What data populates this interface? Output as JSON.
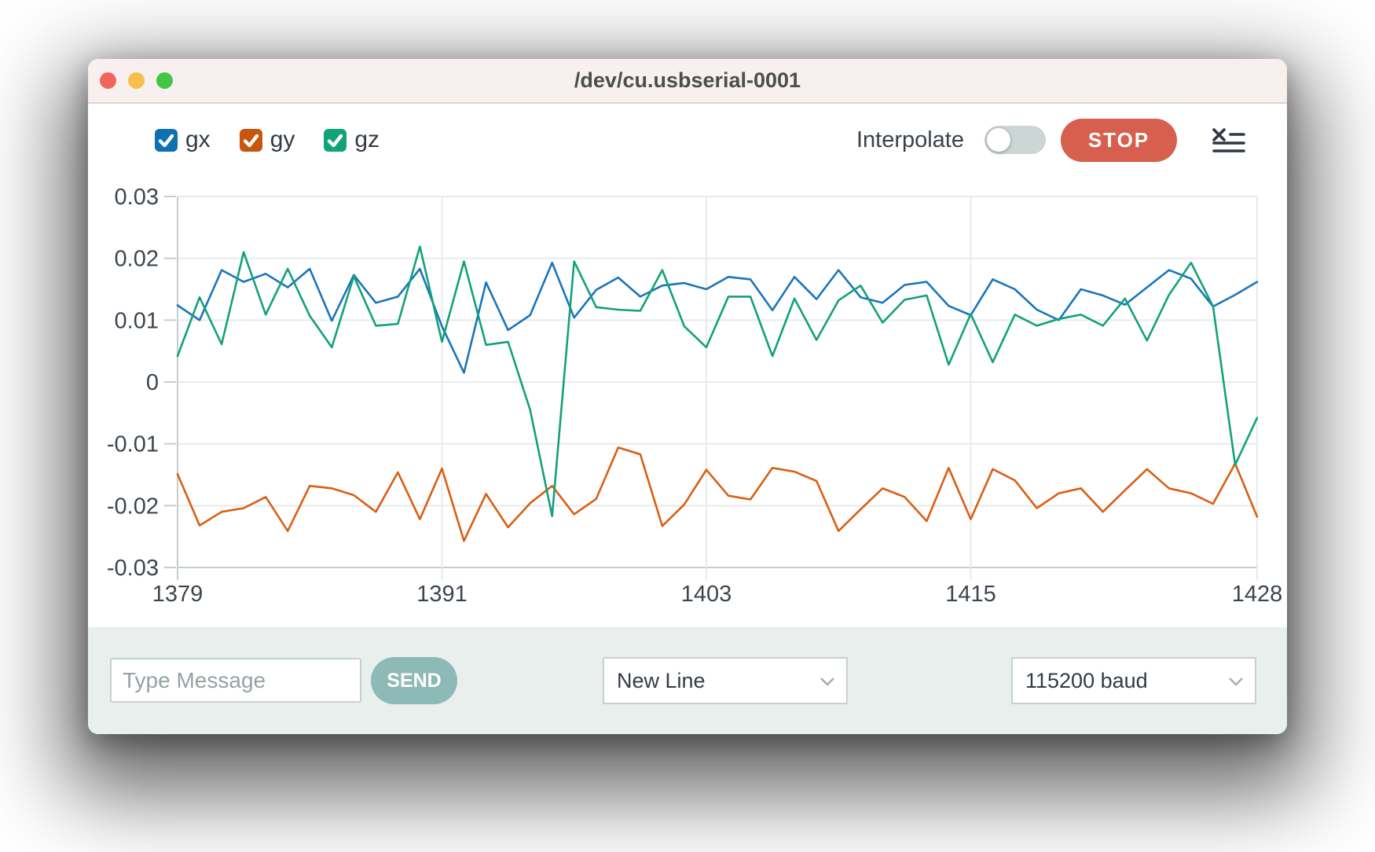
{
  "window": {
    "title": "/dev/cu.usbserial-0001",
    "traffic_lights": [
      "#f2655c",
      "#f6bf4e",
      "#43c645"
    ]
  },
  "legend": [
    {
      "label": "gx",
      "checked": true,
      "color": "#0d72b2"
    },
    {
      "label": "gy",
      "checked": true,
      "color": "#c8560e"
    },
    {
      "label": "gz",
      "checked": true,
      "color": "#12a279"
    }
  ],
  "controls": {
    "interpolate_label": "Interpolate",
    "interpolate_on": false,
    "stop_label": "STOP",
    "console_icon": "clear-console-icon"
  },
  "colors": {
    "titlebar_bg": "#f7f0ee",
    "stop_button": "#d6604d",
    "send_button": "#8db9b6",
    "footer_bg": "#e8efec",
    "toggle_track": "#ccd6d4",
    "grid_line": "#e7ebea",
    "axis_line": "#c6cdcd",
    "axis_text": "#3c454e"
  },
  "chart_data": {
    "type": "line",
    "title": "",
    "xlabel": "",
    "ylabel": "",
    "xlim": [
      1379,
      1428
    ],
    "ylim": [
      -0.03,
      0.03
    ],
    "grid": true,
    "legend_position": "top-left",
    "xticks": [
      1379,
      1391,
      1403,
      1415,
      1428
    ],
    "ytick_labels": [
      "0.03",
      "0.02",
      "0.01",
      "0",
      "-0.01",
      "-0.02",
      "-0.03"
    ],
    "x": [
      1379,
      1380,
      1381,
      1382,
      1383,
      1384,
      1385,
      1386,
      1387,
      1388,
      1389,
      1390,
      1391,
      1392,
      1393,
      1394,
      1395,
      1396,
      1397,
      1398,
      1399,
      1400,
      1401,
      1402,
      1403,
      1404,
      1405,
      1406,
      1407,
      1408,
      1409,
      1410,
      1411,
      1412,
      1413,
      1414,
      1415,
      1416,
      1417,
      1418,
      1419,
      1420,
      1421,
      1422,
      1423,
      1424,
      1425,
      1426,
      1427,
      1428
    ],
    "series": [
      {
        "name": "gx",
        "color": "#1b75bb",
        "values": [
          0.0124,
          0.01,
          0.0181,
          0.0162,
          0.0175,
          0.0153,
          0.0183,
          0.0099,
          0.0173,
          0.0128,
          0.0138,
          0.0183,
          0.009,
          0.0015,
          0.0161,
          0.0084,
          0.0108,
          0.0193,
          0.0104,
          0.0149,
          0.0169,
          0.0138,
          0.0156,
          0.016,
          0.015,
          0.017,
          0.0166,
          0.0116,
          0.017,
          0.0134,
          0.0181,
          0.0137,
          0.0128,
          0.0157,
          0.0162,
          0.0123,
          0.0108,
          0.0166,
          0.015,
          0.0117,
          0.01,
          0.015,
          0.014,
          0.0125,
          0.0153,
          0.0181,
          0.0167,
          0.0122,
          0.0141,
          0.0162
        ]
      },
      {
        "name": "gy",
        "color": "#d95f14",
        "values": [
          -0.0149,
          -0.0232,
          -0.021,
          -0.0204,
          -0.0186,
          -0.0241,
          -0.0168,
          -0.0172,
          -0.0183,
          -0.021,
          -0.0146,
          -0.0222,
          -0.014,
          -0.0257,
          -0.0181,
          -0.0235,
          -0.0196,
          -0.0168,
          -0.0214,
          -0.0189,
          -0.0106,
          -0.0117,
          -0.0233,
          -0.0198,
          -0.0142,
          -0.0184,
          -0.019,
          -0.0139,
          -0.0145,
          -0.016,
          -0.0241,
          -0.0206,
          -0.0172,
          -0.0186,
          -0.0225,
          -0.0139,
          -0.0222,
          -0.0141,
          -0.0159,
          -0.0204,
          -0.018,
          -0.0172,
          -0.021,
          -0.0175,
          -0.0141,
          -0.0172,
          -0.018,
          -0.0197,
          -0.0132,
          -0.0218
        ]
      },
      {
        "name": "gz",
        "color": "#12a17c",
        "values": [
          0.0042,
          0.0137,
          0.0061,
          0.021,
          0.0109,
          0.0183,
          0.0107,
          0.0056,
          0.0171,
          0.0091,
          0.0094,
          0.0219,
          0.0065,
          0.0195,
          0.006,
          0.0065,
          -0.0045,
          -0.0217,
          0.0195,
          0.0121,
          0.0117,
          0.0115,
          0.0181,
          0.009,
          0.0056,
          0.0138,
          0.0138,
          0.0042,
          0.0135,
          0.0068,
          0.0132,
          0.0156,
          0.0096,
          0.0133,
          0.014,
          0.0028,
          0.011,
          0.0032,
          0.0109,
          0.0091,
          0.0102,
          0.0109,
          0.0091,
          0.0135,
          0.0067,
          0.0141,
          0.0193,
          0.0122,
          -0.0134,
          -0.0058
        ]
      }
    ]
  },
  "footer": {
    "message_placeholder": "Type Message",
    "send_label": "SEND",
    "line_ending": "New Line",
    "baud": "115200 baud"
  }
}
